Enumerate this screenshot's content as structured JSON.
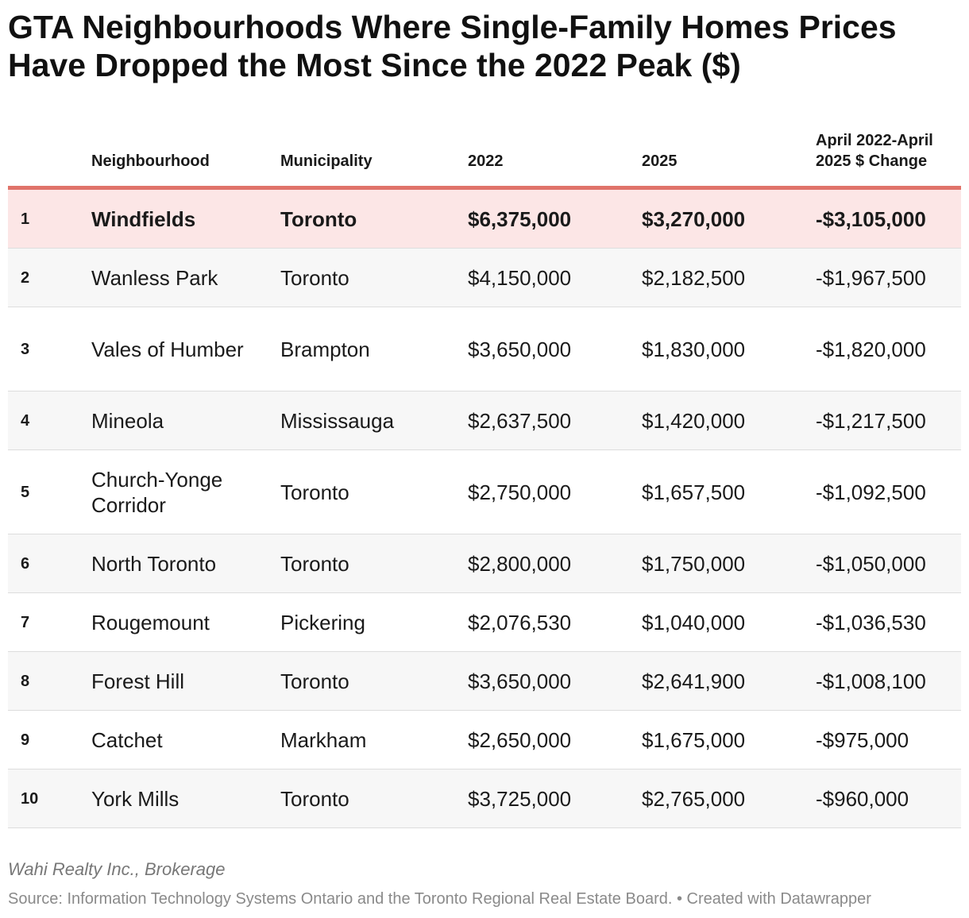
{
  "title": "GTA Neighbourhoods Where Single-Family Homes Prices Have Dropped the Most Since the 2022 Peak ($)",
  "chart_data": {
    "type": "table",
    "columns": [
      "",
      "Neighbourhood",
      "Municipality",
      "2022",
      "2025",
      "April 2022-April 2025 $ Change"
    ],
    "rows": [
      {
        "rank": "1",
        "neighbourhood": "Windfields",
        "municipality": "Toronto",
        "y2022": "$6,375,000",
        "y2025": "$3,270,000",
        "change": "-$3,105,000"
      },
      {
        "rank": "2",
        "neighbourhood": "Wanless Park",
        "municipality": "Toronto",
        "y2022": "$4,150,000",
        "y2025": "$2,182,500",
        "change": "-$1,967,500"
      },
      {
        "rank": "3",
        "neighbourhood": "Vales of Humber",
        "municipality": "Brampton",
        "y2022": "$3,650,000",
        "y2025": "$1,830,000",
        "change": "-$1,820,000"
      },
      {
        "rank": "4",
        "neighbourhood": "Mineola",
        "municipality": "Mississauga",
        "y2022": "$2,637,500",
        "y2025": "$1,420,000",
        "change": "-$1,217,500"
      },
      {
        "rank": "5",
        "neighbourhood": "Church-Yonge Corridor",
        "municipality": "Toronto",
        "y2022": "$2,750,000",
        "y2025": "$1,657,500",
        "change": "-$1,092,500"
      },
      {
        "rank": "6",
        "neighbourhood": "North Toronto",
        "municipality": "Toronto",
        "y2022": "$2,800,000",
        "y2025": "$1,750,000",
        "change": "-$1,050,000"
      },
      {
        "rank": "7",
        "neighbourhood": "Rougemount",
        "municipality": "Pickering",
        "y2022": "$2,076,530",
        "y2025": "$1,040,000",
        "change": "-$1,036,530"
      },
      {
        "rank": "8",
        "neighbourhood": "Forest Hill",
        "municipality": "Toronto",
        "y2022": "$3,650,000",
        "y2025": "$2,641,900",
        "change": "-$1,008,100"
      },
      {
        "rank": "9",
        "neighbourhood": "Catchet",
        "municipality": "Markham",
        "y2022": "$2,650,000",
        "y2025": "$1,675,000",
        "change": "-$975,000"
      },
      {
        "rank": "10",
        "neighbourhood": "York Mills",
        "municipality": "Toronto",
        "y2022": "$3,725,000",
        "y2025": "$2,765,000",
        "change": "-$960,000"
      }
    ],
    "highlight_row_color": "#fce6e6",
    "header_rule_color": "#e0736a"
  },
  "footer": {
    "byline": "Wahi Realty Inc., Brokerage",
    "source": "Source: Information Technology Systems Ontario and the Toronto Regional Real Estate Board. • Created with Datawrapper"
  }
}
